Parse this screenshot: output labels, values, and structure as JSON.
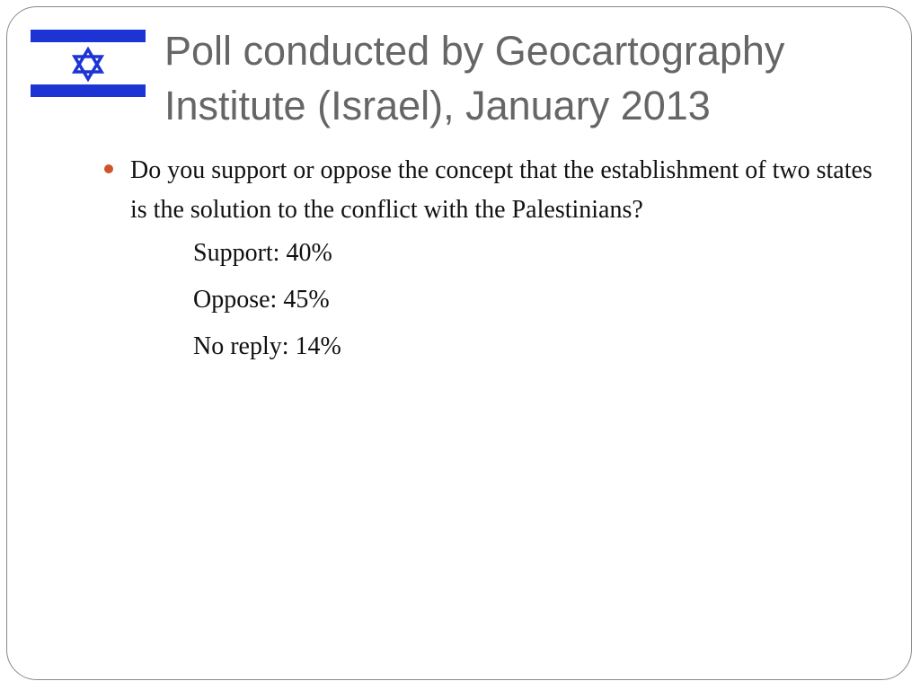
{
  "slide": {
    "title": "Poll conducted by Geocartography Institute (Israel), January 2013",
    "question": "Do you support or oppose the concept that the establishment of two states is the solution to the conflict with the Palestinians?",
    "answers": [
      {
        "text": "Support: 40%"
      },
      {
        "text": "Oppose: 45%"
      },
      {
        "text": "No reply: 14%"
      }
    ],
    "icons": {
      "flag": "israel-flag-icon",
      "bullet": "bullet-dot-icon"
    },
    "colors": {
      "flag_blue": "#1c34d4",
      "title_text": "#666666",
      "bullet": "#d0532a",
      "body_text": "#111111"
    }
  }
}
